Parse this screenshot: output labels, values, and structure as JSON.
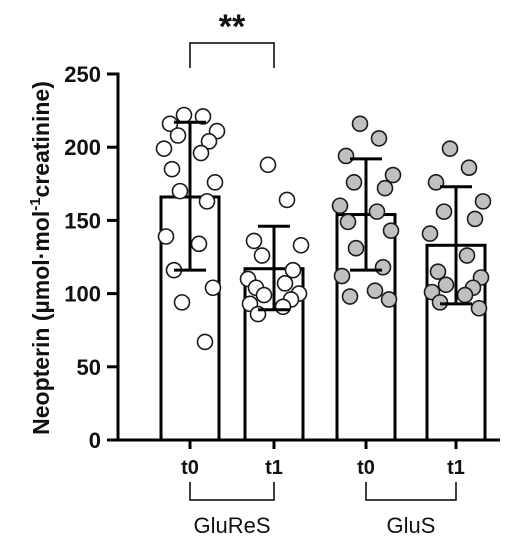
{
  "chart_data": {
    "type": "bar",
    "ylabel_main": "Neopterin (µmol·mol",
    "ylabel_sup": "-1",
    "ylabel_tail": "creatinine)",
    "ylim": [
      0,
      250
    ],
    "yticks": [
      "0",
      "50",
      "100",
      "150",
      "200",
      "250"
    ],
    "categories": [
      "t0",
      "t1",
      "t0",
      "t1"
    ],
    "groups": [
      {
        "name": "GluReS",
        "members": [
          0,
          1
        ]
      },
      {
        "name": "GluS",
        "members": [
          2,
          3
        ]
      }
    ],
    "bars": [
      {
        "category": "t0",
        "group": "GluReS",
        "mean": 166,
        "sd_low": 116,
        "sd_high": 217,
        "point_fill": "#ffffff",
        "points": [
          222,
          221,
          216,
          211,
          208,
          204,
          199,
          196,
          185,
          176,
          170,
          163,
          139,
          134,
          116,
          104,
          94,
          67
        ]
      },
      {
        "category": "t1",
        "group": "GluReS",
        "mean": 117,
        "sd_low": 89,
        "sd_high": 146,
        "point_fill": "#ffffff",
        "points": [
          188,
          164,
          136,
          133,
          126,
          116,
          110,
          107,
          104,
          100,
          99,
          96,
          93,
          91,
          86
        ]
      },
      {
        "category": "t0",
        "group": "GluS",
        "mean": 154,
        "sd_low": 116,
        "sd_high": 192,
        "point_fill": "#c0c0c0",
        "points": [
          216,
          206,
          194,
          181,
          176,
          172,
          160,
          156,
          149,
          143,
          131,
          118,
          112,
          102,
          98,
          96
        ]
      },
      {
        "category": "t1",
        "group": "GluS",
        "mean": 133,
        "sd_low": 93,
        "sd_high": 173,
        "point_fill": "#c0c0c0",
        "points": [
          199,
          186,
          176,
          163,
          156,
          151,
          141,
          126,
          115,
          111,
          106,
          104,
          101,
          99,
          94,
          90
        ]
      }
    ],
    "significance": {
      "from": 0,
      "to": 1,
      "label": "**"
    }
  }
}
